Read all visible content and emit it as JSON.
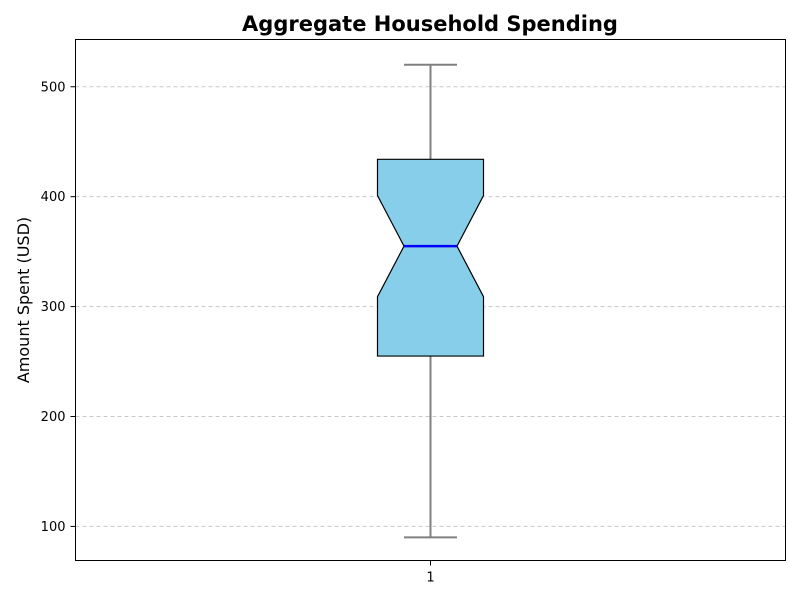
{
  "chart_data": {
    "type": "boxplot",
    "title": "Aggregate Household Spending",
    "ylabel": "Amount Spent (USD)",
    "xlabel": "",
    "categories": [
      "1"
    ],
    "ylim": [
      69,
      543
    ],
    "yticks": [
      100,
      200,
      300,
      400,
      500
    ],
    "grid": "y-dashed",
    "notched": true,
    "boxes": [
      {
        "label": "1",
        "whisker_low": 90,
        "q1": 255,
        "median": 355,
        "q3": 434,
        "whisker_high": 520,
        "notch_low": 309,
        "notch_high": 401
      }
    ],
    "colors": {
      "box_fill": "#87ceeb",
      "box_edge": "#000000",
      "median": "#0000ff",
      "whisker": "#808080",
      "grid": "#c8c8c8"
    }
  }
}
